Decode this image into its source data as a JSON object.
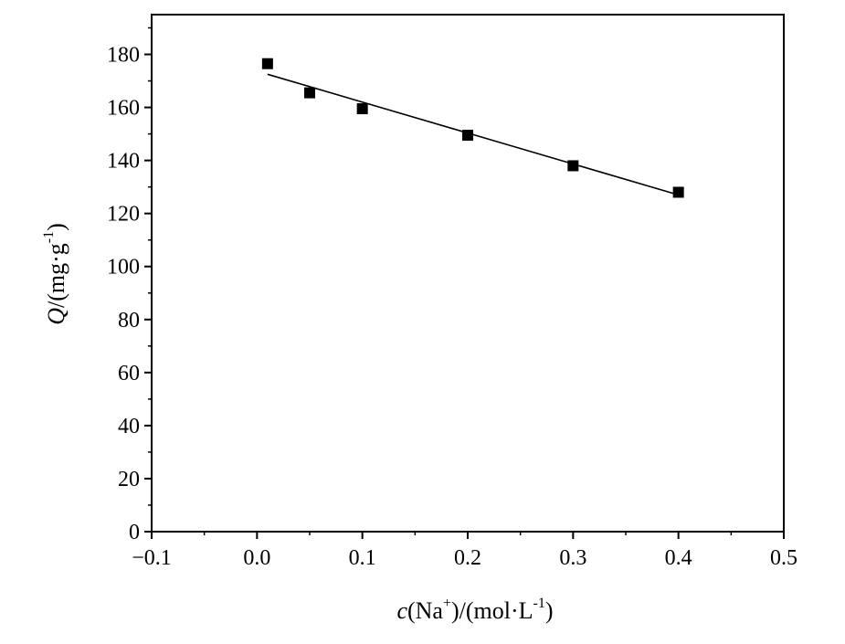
{
  "chart_data": {
    "type": "scatter",
    "xlabel": {
      "var": "c",
      "open": "(Na",
      "sup1": "+",
      "mid": ")/(mol·L",
      "sup2": "-1",
      "close": ")"
    },
    "ylabel": {
      "var": "Q",
      "open": "/(mg·g",
      "sup": "-1",
      "close": ")"
    },
    "xlim": [
      -0.1,
      0.5
    ],
    "ylim": [
      0,
      195
    ],
    "xticks": [
      -0.1,
      0.0,
      0.1,
      0.2,
      0.3,
      0.4,
      0.5
    ],
    "xtick_labels": [
      "−0.1",
      "0.0",
      "0.1",
      "0.2",
      "0.3",
      "0.4",
      "0.5"
    ],
    "yticks": [
      0,
      20,
      40,
      60,
      80,
      100,
      120,
      140,
      160,
      180
    ],
    "ytick_labels": [
      "0",
      "20",
      "40",
      "60",
      "80",
      "100",
      "120",
      "140",
      "160",
      "180"
    ],
    "grid": false,
    "series": [
      {
        "marker": "square",
        "color": "#000000",
        "x": [
          0.01,
          0.05,
          0.1,
          0.2,
          0.3,
          0.4
        ],
        "y": [
          176.5,
          165.5,
          159.5,
          149.5,
          138,
          128
        ]
      }
    ],
    "fit_line": {
      "color": "#000000",
      "x": [
        0.01,
        0.4
      ],
      "y": [
        172.5,
        127
      ]
    }
  }
}
